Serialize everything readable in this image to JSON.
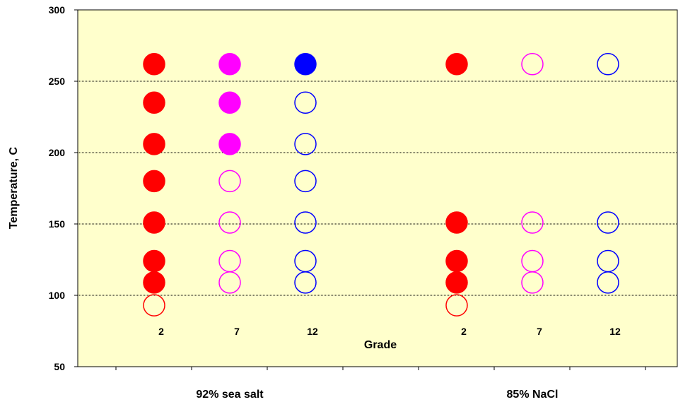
{
  "chart_data": {
    "type": "scatter",
    "title": "",
    "xlabel": "Grade",
    "ylabel": "Temperature, C",
    "ylim": [
      50,
      300
    ],
    "yticks": [
      50,
      100,
      150,
      200,
      250,
      300
    ],
    "grid": true,
    "legend": "none",
    "colors": {
      "grade_2": "#ff0000",
      "grade_7": "#ff00ff",
      "grade_12": "#0000ff",
      "plot_bg": "#ffffcc"
    },
    "groups": [
      {
        "label": "92% sea salt",
        "grades": [
          {
            "grade": "2",
            "color": "#ff0000",
            "points": [
              {
                "y": 262,
                "filled": true
              },
              {
                "y": 235,
                "filled": true
              },
              {
                "y": 206,
                "filled": true
              },
              {
                "y": 180,
                "filled": true
              },
              {
                "y": 151,
                "filled": true
              },
              {
                "y": 124,
                "filled": true
              },
              {
                "y": 109,
                "filled": true
              },
              {
                "y": 93,
                "filled": false
              }
            ]
          },
          {
            "grade": "7",
            "color": "#ff00ff",
            "points": [
              {
                "y": 262,
                "filled": true
              },
              {
                "y": 235,
                "filled": true
              },
              {
                "y": 206,
                "filled": true
              },
              {
                "y": 180,
                "filled": false
              },
              {
                "y": 151,
                "filled": false
              },
              {
                "y": 124,
                "filled": false
              },
              {
                "y": 109,
                "filled": false
              }
            ]
          },
          {
            "grade": "12",
            "color": "#0000ff",
            "points": [
              {
                "y": 262,
                "filled": true
              },
              {
                "y": 235,
                "filled": false
              },
              {
                "y": 206,
                "filled": false
              },
              {
                "y": 180,
                "filled": false
              },
              {
                "y": 151,
                "filled": false
              },
              {
                "y": 124,
                "filled": false
              },
              {
                "y": 109,
                "filled": false
              }
            ]
          }
        ]
      },
      {
        "label": "85% NaCl",
        "grades": [
          {
            "grade": "2",
            "color": "#ff0000",
            "points": [
              {
                "y": 262,
                "filled": true
              },
              {
                "y": 151,
                "filled": true
              },
              {
                "y": 124,
                "filled": true
              },
              {
                "y": 109,
                "filled": true
              },
              {
                "y": 93,
                "filled": false
              }
            ]
          },
          {
            "grade": "7",
            "color": "#ff00ff",
            "points": [
              {
                "y": 262,
                "filled": false
              },
              {
                "y": 151,
                "filled": false
              },
              {
                "y": 124,
                "filled": false
              },
              {
                "y": 109,
                "filled": false
              }
            ]
          },
          {
            "grade": "12",
            "color": "#0000ff",
            "points": [
              {
                "y": 262,
                "filled": false
              },
              {
                "y": 151,
                "filled": false
              },
              {
                "y": 124,
                "filled": false
              },
              {
                "y": 109,
                "filled": false
              }
            ]
          }
        ]
      }
    ]
  }
}
